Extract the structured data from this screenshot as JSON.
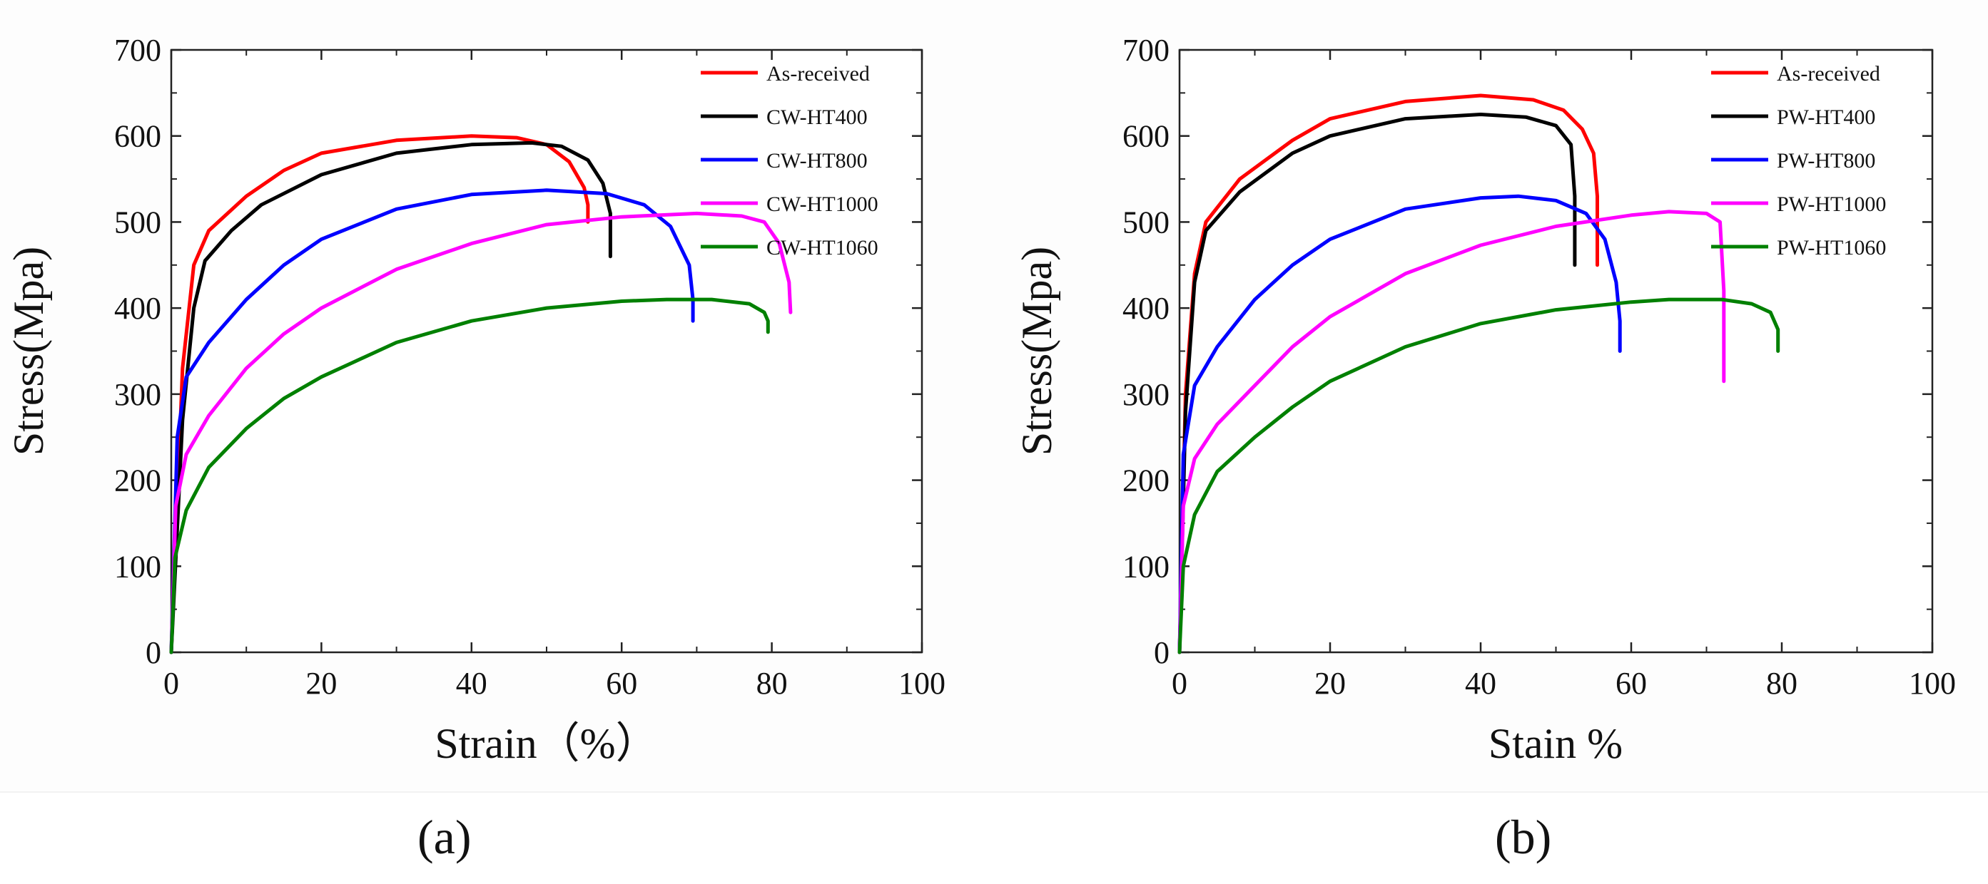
{
  "chart_data": [
    {
      "type": "line",
      "title": "",
      "xlabel": "Strain（%）",
      "ylabel": "Stress(Mpa)",
      "xlim": [
        0,
        100
      ],
      "ylim": [
        0,
        700
      ],
      "xticks": [
        "0",
        "20",
        "40",
        "60",
        "80",
        "100"
      ],
      "yticks": [
        "0",
        "100",
        "200",
        "300",
        "400",
        "500",
        "600",
        "700"
      ],
      "grid": false,
      "legend_position": "top-right",
      "series": [
        {
          "name": "As-received",
          "color": "#ff0000",
          "x": [
            0,
            1.5,
            3,
            5,
            10,
            15,
            20,
            30,
            40,
            46,
            50,
            53,
            55,
            55.5,
            55.5
          ],
          "y": [
            0,
            330,
            450,
            490,
            530,
            560,
            580,
            595,
            600,
            598,
            590,
            570,
            540,
            520,
            500
          ]
        },
        {
          "name": "CW-HT400",
          "color": "#000000",
          "x": [
            0,
            1.5,
            3,
            4.5,
            8,
            12,
            20,
            30,
            40,
            48,
            52,
            55.5,
            57.5,
            58.5,
            58.5
          ],
          "y": [
            0,
            270,
            400,
            455,
            490,
            520,
            555,
            580,
            590,
            592,
            588,
            572,
            545,
            510,
            460
          ]
        },
        {
          "name": "CW-HT800",
          "color": "#0000ff",
          "x": [
            0,
            0.8,
            2,
            5,
            10,
            15,
            20,
            30,
            40,
            50,
            58,
            63,
            66.5,
            69,
            69.5,
            69.5
          ],
          "y": [
            0,
            250,
            320,
            360,
            410,
            450,
            480,
            515,
            532,
            537,
            533,
            520,
            495,
            450,
            410,
            385
          ]
        },
        {
          "name": "CW-HT1000",
          "color": "#ff00ff",
          "x": [
            0,
            0.6,
            2,
            5,
            10,
            15,
            20,
            30,
            40,
            50,
            60,
            70,
            76,
            79,
            81,
            82.3,
            82.5
          ],
          "y": [
            0,
            170,
            230,
            275,
            330,
            370,
            400,
            445,
            475,
            497,
            506,
            510,
            507,
            500,
            475,
            430,
            395
          ]
        },
        {
          "name": "CW-HT1060",
          "color": "#008000",
          "x": [
            0,
            0.5,
            2,
            5,
            10,
            15,
            20,
            30,
            40,
            50,
            60,
            66,
            72,
            77,
            79,
            79.5,
            79.5
          ],
          "y": [
            0,
            110,
            165,
            215,
            260,
            295,
            320,
            360,
            385,
            400,
            408,
            410,
            410,
            405,
            395,
            385,
            372
          ]
        }
      ]
    },
    {
      "type": "line",
      "title": "",
      "xlabel": "Stain %",
      "ylabel": "Stress(Mpa)",
      "xlim": [
        0,
        100
      ],
      "ylim": [
        0,
        700
      ],
      "xticks": [
        "0",
        "20",
        "40",
        "60",
        "80",
        "100"
      ],
      "yticks": [
        "0",
        "100",
        "200",
        "300",
        "400",
        "500",
        "600",
        "700"
      ],
      "grid": false,
      "legend_position": "top-right",
      "series": [
        {
          "name": "As-received",
          "color": "#ff0000",
          "x": [
            0,
            0.8,
            2,
            3.5,
            8,
            15,
            20,
            30,
            40,
            47,
            51,
            53.5,
            55,
            55.5,
            55.5
          ],
          "y": [
            0,
            300,
            440,
            500,
            550,
            595,
            620,
            640,
            647,
            642,
            630,
            608,
            580,
            530,
            450
          ]
        },
        {
          "name": "PW-HT400",
          "color": "#000000",
          "x": [
            0,
            0.8,
            2,
            3.5,
            8,
            15,
            20,
            30,
            40,
            46,
            50,
            52,
            52.5,
            52.5
          ],
          "y": [
            0,
            280,
            430,
            490,
            535,
            580,
            600,
            620,
            625,
            622,
            612,
            590,
            530,
            450
          ]
        },
        {
          "name": "PW-HT800",
          "color": "#0000ff",
          "x": [
            0,
            0.5,
            2,
            5,
            10,
            15,
            20,
            30,
            40,
            45,
            50,
            54,
            56.5,
            58,
            58.5,
            58.5
          ],
          "y": [
            0,
            230,
            310,
            355,
            410,
            450,
            480,
            515,
            528,
            530,
            525,
            510,
            480,
            430,
            385,
            350
          ]
        },
        {
          "name": "PW-HT1000",
          "color": "#ff00ff",
          "x": [
            0,
            0.5,
            2,
            5,
            10,
            15,
            20,
            30,
            40,
            50,
            60,
            65,
            70,
            71.8,
            72.3,
            72.3
          ],
          "y": [
            0,
            170,
            225,
            265,
            310,
            355,
            390,
            440,
            473,
            495,
            508,
            512,
            510,
            500,
            420,
            315
          ]
        },
        {
          "name": "PW-HT1060",
          "color": "#008000",
          "x": [
            0,
            0.5,
            2,
            5,
            10,
            15,
            20,
            30,
            40,
            50,
            60,
            65,
            72,
            76,
            78.5,
            79.5,
            79.5
          ],
          "y": [
            0,
            100,
            160,
            210,
            250,
            285,
            315,
            355,
            382,
            398,
            407,
            410,
            410,
            405,
            395,
            375,
            350
          ]
        }
      ]
    }
  ],
  "panel_labels": [
    "(a)",
    "(b)"
  ]
}
